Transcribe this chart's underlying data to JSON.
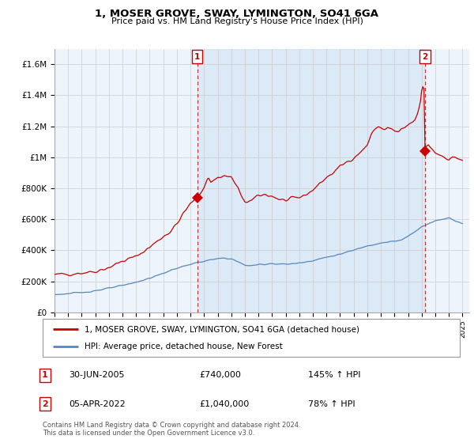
{
  "title": "1, MOSER GROVE, SWAY, LYMINGTON, SO41 6GA",
  "subtitle": "Price paid vs. HM Land Registry's House Price Index (HPI)",
  "red_label": "1, MOSER GROVE, SWAY, LYMINGTON, SO41 6GA (detached house)",
  "blue_label": "HPI: Average price, detached house, New Forest",
  "transaction1_date": "30-JUN-2005",
  "transaction1_price": "£740,000",
  "transaction1_hpi": "145% ↑ HPI",
  "transaction2_date": "05-APR-2022",
  "transaction2_price": "£1,040,000",
  "transaction2_hpi": "78% ↑ HPI",
  "footer1": "Contains HM Land Registry data © Crown copyright and database right 2024.",
  "footer2": "This data is licensed under the Open Government Licence v3.0.",
  "red_color": "#cc0000",
  "blue_color": "#5588bb",
  "background_color": "#ffffff",
  "chart_bg_color": "#eef4fb",
  "grid_color": "#cccccc",
  "highlight_color": "#ddeeff",
  "ylim_max": 1700000,
  "yticks": [
    0,
    200000,
    400000,
    600000,
    800000,
    1000000,
    1200000,
    1400000,
    1600000
  ],
  "ytick_labels": [
    "£0",
    "£200K",
    "£400K",
    "£600K",
    "£800K",
    "£1M",
    "£1.2M",
    "£1.4M",
    "£1.6M"
  ],
  "transaction1_x": 2005.5,
  "transaction1_y": 740000,
  "transaction2_x": 2022.25,
  "transaction2_y": 1040000,
  "xmin": 1995,
  "xmax": 2025.5
}
